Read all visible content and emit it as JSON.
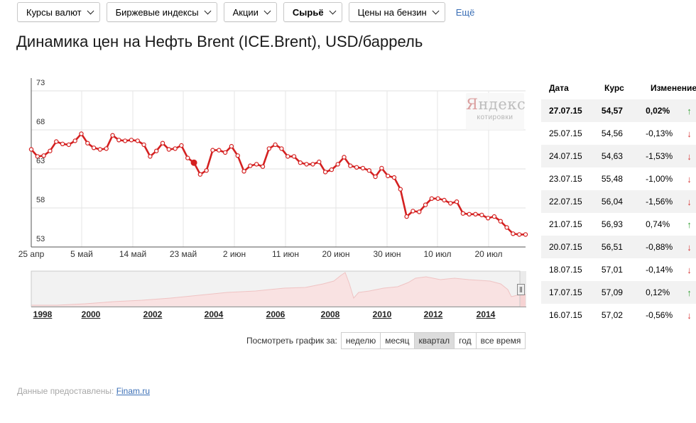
{
  "nav": {
    "items": [
      {
        "label": "Курсы валют",
        "active": false
      },
      {
        "label": "Биржевые индексы",
        "active": false
      },
      {
        "label": "Акции",
        "active": false
      },
      {
        "label": "Сырьё",
        "active": true
      },
      {
        "label": "Цены на бензин",
        "active": false
      }
    ],
    "more": "Ещё"
  },
  "page_title": "Динамика цен на Нефть Brent (ICE.Brent), USD/баррель",
  "watermark": {
    "logo": "Яндекс",
    "sub": "котировки"
  },
  "chart_data": {
    "type": "line",
    "title": "Динамика цен на Нефть Brent (ICE.Brent), USD/баррель",
    "ylim": [
      53,
      73
    ],
    "yticks": [
      "73",
      "68",
      "63",
      "58",
      "53"
    ],
    "xticks": [
      "25 апр",
      "5 май",
      "14 май",
      "23 май",
      "2 июн",
      "11 июн",
      "20 июн",
      "30 июн",
      "10 июл",
      "20 июл"
    ],
    "grid": true,
    "color": "#d42020",
    "series": [
      {
        "values": [
          65.5,
          64.6,
          64.7,
          65.3,
          66.5,
          66.2,
          66.1,
          66.6,
          67.5,
          66.3,
          65.7,
          65.5,
          65.6,
          67.3,
          66.7,
          66.6,
          66.7,
          66.6,
          66.1,
          64.6,
          65.3,
          66.3,
          65.5,
          65.6,
          66,
          64.4,
          63.8,
          62.3,
          62.8,
          65.4,
          65.4,
          65.1,
          65.9,
          64.7,
          62.7,
          63.4,
          63.6,
          63.3,
          65.6,
          66.1,
          65.6,
          64.6,
          64.6,
          63.8,
          63.6,
          63.6,
          63.9,
          62.6,
          62.9,
          63.6,
          64.5,
          63.4,
          63.2,
          63.1,
          62.8,
          62,
          63.1,
          62.1,
          61.9,
          60.4,
          56.9,
          57.6,
          57.5,
          58.4,
          59.2,
          59.2,
          59,
          58.6,
          58.8,
          57.3,
          57.2,
          57.2,
          57.1,
          56.7,
          56.9,
          56.3,
          55.5,
          54.7,
          54.6,
          54.6
        ],
        "highlight_index": 26
      }
    ]
  },
  "navigator": {
    "years": [
      "1998",
      "2000",
      "2002",
      "2004",
      "2006",
      "2008",
      "2010",
      "2012",
      "2014"
    ]
  },
  "period": {
    "label": "Посмотреть график за:",
    "buttons": [
      {
        "label": "неделю",
        "selected": false
      },
      {
        "label": "месяц",
        "selected": false
      },
      {
        "label": "квартал",
        "selected": true
      },
      {
        "label": "год",
        "selected": false
      },
      {
        "label": "все время",
        "selected": false
      }
    ]
  },
  "source": {
    "prefix": "Данные предоставлены:",
    "link": "Finam.ru"
  },
  "table": {
    "headers": {
      "date": "Дата",
      "rate": "Курс",
      "change": "Изменение"
    },
    "rows": [
      {
        "date": "27.07.15",
        "rate": "54,57",
        "change": "0,02%",
        "dir": "up"
      },
      {
        "date": "25.07.15",
        "rate": "54,56",
        "change": "-0,13%",
        "dir": "down"
      },
      {
        "date": "24.07.15",
        "rate": "54,63",
        "change": "-1,53%",
        "dir": "down"
      },
      {
        "date": "23.07.15",
        "rate": "55,48",
        "change": "-1,00%",
        "dir": "down"
      },
      {
        "date": "22.07.15",
        "rate": "56,04",
        "change": "-1,56%",
        "dir": "down"
      },
      {
        "date": "21.07.15",
        "rate": "56,93",
        "change": "0,74%",
        "dir": "up"
      },
      {
        "date": "20.07.15",
        "rate": "56,51",
        "change": "-0,88%",
        "dir": "down"
      },
      {
        "date": "18.07.15",
        "rate": "57,01",
        "change": "-0,14%",
        "dir": "down"
      },
      {
        "date": "17.07.15",
        "rate": "57,09",
        "change": "0,12%",
        "dir": "up"
      },
      {
        "date": "16.07.15",
        "rate": "57,02",
        "change": "-0,56%",
        "dir": "down"
      }
    ]
  }
}
